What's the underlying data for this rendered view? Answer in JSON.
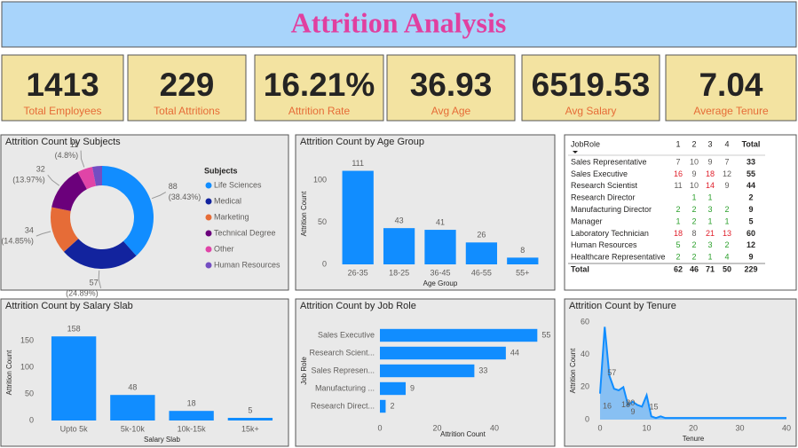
{
  "title": "Attrition Analysis",
  "kpis": [
    {
      "value": 1413,
      "name": "Total Employees"
    },
    {
      "value": 229,
      "name": "Total Attritions"
    },
    {
      "value": 16.21,
      "value_label": "16.21%",
      "name": "Attrition Rate"
    },
    {
      "value": 36.93,
      "name": "Avg Age"
    },
    {
      "value": 6519.53,
      "name": "Avg Salary"
    },
    {
      "value": 7.04,
      "name": "Average Tenure"
    }
  ],
  "table": {
    "header": [
      "JobRole",
      "1",
      "2",
      "3",
      "4",
      "Total"
    ],
    "rows": [
      [
        "Sales Representative",
        7,
        10,
        9,
        7,
        33
      ],
      [
        "Sales Executive",
        16,
        9,
        18,
        12,
        55
      ],
      [
        "Research Scientist",
        11,
        10,
        14,
        9,
        44
      ],
      [
        "Research Director",
        null,
        1,
        1,
        null,
        2
      ],
      [
        "Manufacturing Director",
        2,
        2,
        3,
        2,
        9
      ],
      [
        "Manager",
        1,
        2,
        1,
        1,
        5
      ],
      [
        "Laboratory Technician",
        18,
        8,
        21,
        13,
        60
      ],
      [
        "Human Resources",
        5,
        2,
        3,
        2,
        12
      ],
      [
        "Healthcare Representative",
        2,
        2,
        1,
        4,
        9
      ]
    ],
    "total": [
      "Total",
      62,
      46,
      71,
      50,
      229
    ],
    "low_max": 5,
    "low_color": "#2ca02c",
    "high_min": 13,
    "high_color": "#e0202c"
  },
  "chart_data": [
    {
      "type": "donut",
      "title": "Attrition Count by Subjects",
      "legend_title": "Subjects",
      "categories": [
        "Life Sciences",
        "Medical",
        "Marketing",
        "Technical Degree",
        "Other",
        "Human Resources"
      ],
      "values": [
        88,
        57,
        34,
        32,
        11,
        7
      ],
      "percent_labels": [
        "(38.43%)",
        "(24.89%)",
        "(14.85%)",
        "(13.97%)",
        "(4.8%)",
        null
      ],
      "colors": [
        "#118dff",
        "#12239e",
        "#e66c37",
        "#6b007b",
        "#e044a7",
        "#744ec2"
      ]
    },
    {
      "type": "bar",
      "title": "Attrition Count by Age Group",
      "x_label": "Age Group",
      "y_label": "Attrition Count",
      "categories": [
        "26-35",
        "18-25",
        "36-45",
        "46-55",
        "55+"
      ],
      "values": [
        111,
        43,
        41,
        26,
        8
      ],
      "color": "#118dff",
      "ylim": [
        0,
        120
      ],
      "yticks": [
        0,
        50,
        100
      ]
    },
    {
      "type": "bar",
      "title": "Attrition Count by Salary Slab",
      "x_label": "Salary Slab",
      "y_label": "Attrition Count",
      "categories": [
        "Upto 5k",
        "5k-10k",
        "10k-15k",
        "15k+"
      ],
      "values": [
        158,
        48,
        18,
        5
      ],
      "color": "#118dff",
      "ylim": [
        0,
        180
      ],
      "yticks": [
        0,
        50,
        100,
        150
      ]
    },
    {
      "type": "hbar",
      "title": "Attrition Count by Job Role",
      "x_label": "Attrition Count",
      "y_label": "Job Role",
      "categories": [
        "Sales Executive",
        "Research Scient...",
        "Sales Represen...",
        "Manufacturing ...",
        "Research Direct..."
      ],
      "values": [
        55,
        44,
        33,
        9,
        2
      ],
      "color": "#118dff",
      "xlim": [
        0,
        58
      ],
      "xticks": [
        0,
        20,
        40
      ]
    },
    {
      "type": "area",
      "title": "Attrition Count by Tenure",
      "x_label": "Tenure",
      "y_label": "Attrition Count",
      "x": [
        0,
        1,
        2,
        3,
        4,
        5,
        6,
        7,
        8,
        9,
        10,
        11,
        12,
        13,
        14,
        15,
        16,
        17,
        18,
        19,
        20,
        21,
        22,
        23,
        24,
        31,
        32,
        33,
        36,
        40
      ],
      "values": [
        16,
        57,
        27,
        19,
        18,
        20,
        9,
        11,
        9,
        8,
        15,
        2,
        1,
        2,
        1,
        1,
        1,
        1,
        1,
        1,
        1,
        1,
        1,
        1,
        1,
        1,
        1,
        1,
        1,
        1
      ],
      "value_labels": [
        "16",
        "57",
        null,
        null,
        "18",
        "20",
        "9",
        null,
        null,
        null,
        "15",
        null,
        null,
        null,
        null,
        null,
        null,
        null,
        null,
        null,
        null,
        null,
        null,
        null,
        null,
        null,
        null,
        null,
        null,
        null
      ],
      "color": "#118dff",
      "xlim": [
        0,
        40
      ],
      "xticks": [
        0,
        10,
        20,
        30,
        40
      ],
      "ylim": [
        0,
        60
      ],
      "yticks": [
        0,
        20,
        40,
        60
      ]
    }
  ]
}
